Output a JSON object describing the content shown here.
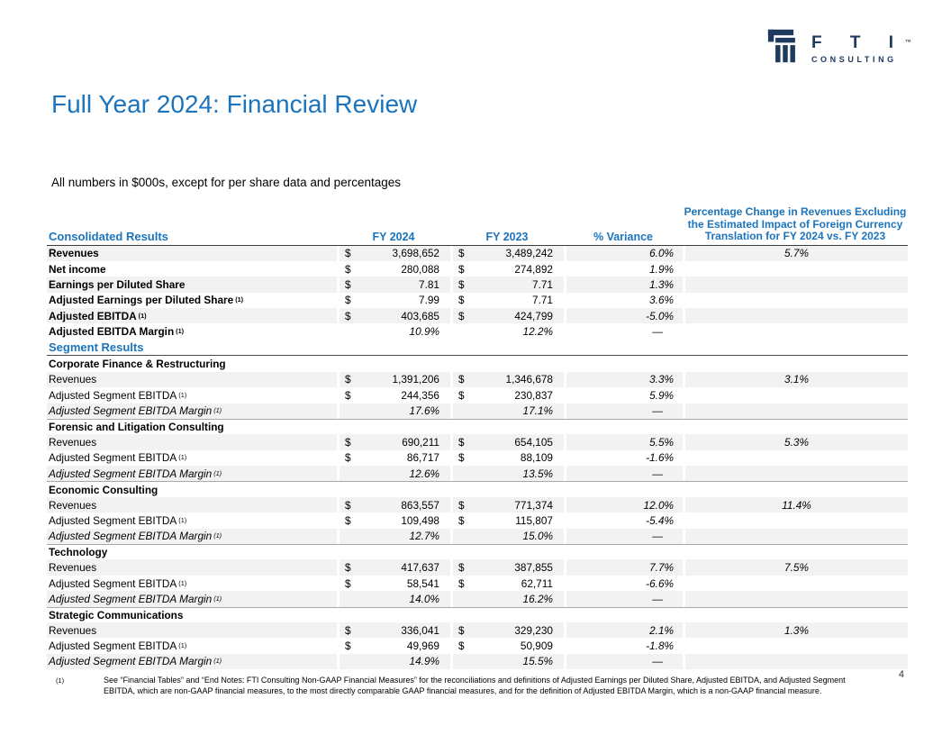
{
  "brand": {
    "name": "F T I",
    "tm": "™",
    "sub": "CONSULTING"
  },
  "title": "Full Year 2024: Financial Review",
  "subtitle": "All numbers in $000s, except for per share data and percentages",
  "page_number": "4",
  "colors": {
    "accent_blue": "#1c74bc",
    "logo_navy": "#1e3a5c",
    "row_stripe": "#f2f2f2"
  },
  "table": {
    "headers": {
      "label": "Consolidated Results",
      "fy2024": "FY 2024",
      "fy2023": "FY 2023",
      "variance": "% Variance",
      "fx": "Percentage Change in Revenues Excluding the Estimated Impact of Foreign Currency Translation for FY 2024 vs. FY 2023"
    },
    "rows": [
      {
        "type": "data",
        "label": "Revenues",
        "ls": "bold",
        "d1": "$",
        "v1": "3,698,652",
        "d2": "$",
        "v2": "3,489,242",
        "vr": "6.0%",
        "fx": "5.7%",
        "striped": true
      },
      {
        "type": "data",
        "label": "Net income",
        "ls": "bold",
        "d1": "$",
        "v1": "280,088",
        "d2": "$",
        "v2": "274,892",
        "vr": "1.9%",
        "fx": "",
        "striped": false
      },
      {
        "type": "data",
        "label": "Earnings per Diluted Share",
        "ls": "bold",
        "d1": "$",
        "v1": "7.81",
        "d2": "$",
        "v2": "7.71",
        "vr": "1.3%",
        "fx": "",
        "striped": true
      },
      {
        "type": "data",
        "label": "Adjusted Earnings per Diluted Share",
        "sup": "(1)",
        "ls": "bold",
        "d1": "$",
        "v1": "7.99",
        "d2": "$",
        "v2": "7.71",
        "vr": "3.6%",
        "fx": "",
        "striped": false
      },
      {
        "type": "data",
        "label": "Adjusted EBITDA",
        "sup": "(1)",
        "ls": "bold",
        "d1": "$",
        "v1": "403,685",
        "d2": "$",
        "v2": "424,799",
        "vr": "-5.0%",
        "fx": "",
        "striped": true
      },
      {
        "type": "data",
        "label": "Adjusted EBITDA Margin",
        "sup": "(1)",
        "ls": "bold",
        "d1": "",
        "v1": "10.9%",
        "d2": "",
        "v2": "12.2%",
        "vi": true,
        "vr": "—",
        "fx": "",
        "striped": false
      },
      {
        "type": "section",
        "label": "Segment Results"
      },
      {
        "type": "group",
        "label": "Corporate Finance & Restructuring",
        "topline": false
      },
      {
        "type": "data",
        "label": "Revenues",
        "ls": "",
        "d1": "$",
        "v1": "1,391,206",
        "d2": "$",
        "v2": "1,346,678",
        "vr": "3.3%",
        "fx": "3.1%",
        "striped": true
      },
      {
        "type": "data",
        "label": "Adjusted Segment EBITDA",
        "sup": "(1)",
        "ls": "",
        "d1": "$",
        "v1": "244,356",
        "d2": "$",
        "v2": "230,837",
        "vr": "5.9%",
        "fx": "",
        "striped": false
      },
      {
        "type": "data",
        "label": "Adjusted Segment EBITDA Margin",
        "sup": "(1)",
        "ls": "italic",
        "d1": "",
        "v1": "17.6%",
        "d2": "",
        "v2": "17.1%",
        "vi": true,
        "vr": "—",
        "fx": "",
        "striped": true
      },
      {
        "type": "group",
        "label": "Forensic and Litigation Consulting",
        "topline": true
      },
      {
        "type": "data",
        "label": "Revenues",
        "ls": "",
        "d1": "$",
        "v1": "690,211",
        "d2": "$",
        "v2": "654,105",
        "vr": "5.5%",
        "fx": "5.3%",
        "striped": true
      },
      {
        "type": "data",
        "label": "Adjusted Segment EBITDA",
        "sup": "(1)",
        "ls": "",
        "d1": "$",
        "v1": "86,717",
        "d2": "$",
        "v2": "88,109",
        "vr": "-1.6%",
        "fx": "",
        "striped": false
      },
      {
        "type": "data",
        "label": "Adjusted Segment EBITDA Margin",
        "sup": "(1)",
        "ls": "italic",
        "d1": "",
        "v1": "12.6%",
        "d2": "",
        "v2": "13.5%",
        "vi": true,
        "vr": "—",
        "fx": "",
        "striped": true
      },
      {
        "type": "group",
        "label": "Economic Consulting",
        "topline": true
      },
      {
        "type": "data",
        "label": "Revenues",
        "ls": "",
        "d1": "$",
        "v1": "863,557",
        "d2": "$",
        "v2": "771,374",
        "vr": "12.0%",
        "fx": "11.4%",
        "striped": true
      },
      {
        "type": "data",
        "label": "Adjusted Segment EBITDA",
        "sup": "(1)",
        "ls": "",
        "d1": "$",
        "v1": "109,498",
        "d2": "$",
        "v2": "115,807",
        "vr": "-5.4%",
        "fx": "",
        "striped": false
      },
      {
        "type": "data",
        "label": "Adjusted Segment EBITDA Margin",
        "sup": "(1)",
        "ls": "italic",
        "d1": "",
        "v1": "12.7%",
        "d2": "",
        "v2": "15.0%",
        "vi": true,
        "vr": "—",
        "fx": "",
        "striped": true
      },
      {
        "type": "group",
        "label": "Technology",
        "topline": true
      },
      {
        "type": "data",
        "label": "Revenues",
        "ls": "",
        "d1": "$",
        "v1": "417,637",
        "d2": "$",
        "v2": "387,855",
        "vr": "7.7%",
        "fx": "7.5%",
        "striped": true
      },
      {
        "type": "data",
        "label": "Adjusted Segment EBITDA",
        "sup": "(1)",
        "ls": "",
        "d1": "$",
        "v1": "58,541",
        "d2": "$",
        "v2": "62,711",
        "vr": "-6.6%",
        "fx": "",
        "striped": false
      },
      {
        "type": "data",
        "label": "Adjusted Segment EBITDA Margin",
        "sup": "(1)",
        "ls": "italic",
        "d1": "",
        "v1": "14.0%",
        "d2": "",
        "v2": "16.2%",
        "vi": true,
        "vr": "—",
        "fx": "",
        "striped": true
      },
      {
        "type": "group",
        "label": "Strategic Communications",
        "topline": true
      },
      {
        "type": "data",
        "label": "Revenues",
        "ls": "",
        "d1": "$",
        "v1": "336,041",
        "d2": "$",
        "v2": "329,230",
        "vr": "2.1%",
        "fx": "1.3%",
        "striped": true
      },
      {
        "type": "data",
        "label": "Adjusted Segment EBITDA",
        "sup": "(1)",
        "ls": "",
        "d1": "$",
        "v1": "49,969",
        "d2": "$",
        "v2": "50,909",
        "vr": "-1.8%",
        "fx": "",
        "striped": false
      },
      {
        "type": "data",
        "label": "Adjusted Segment EBITDA Margin",
        "sup": "(1)",
        "ls": "italic",
        "d1": "",
        "v1": "14.9%",
        "d2": "",
        "v2": "15.5%",
        "vi": true,
        "vr": "—",
        "fx": "",
        "striped": true
      }
    ]
  },
  "footnote": {
    "marker": "(1)",
    "text": "See “Financial Tables” and “End Notes: FTI Consulting Non-GAAP Financial Measures” for the reconciliations and definitions of Adjusted Earnings per Diluted Share, Adjusted EBITDA, and Adjusted Segment EBITDA, which are non-GAAP financial measures, to the most directly comparable GAAP financial measures, and for the definition of Adjusted EBITDA Margin, which is a non-GAAP financial measure."
  }
}
